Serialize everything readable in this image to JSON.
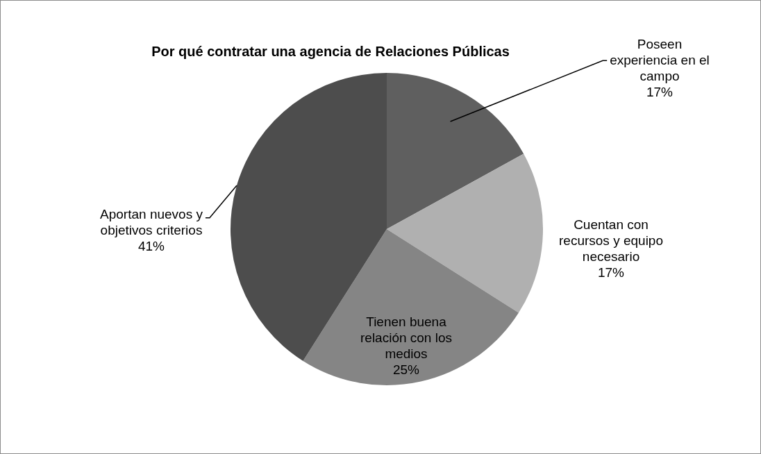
{
  "chart_data": {
    "type": "pie",
    "title": "Por qué contratar una agencia de Relaciones Públicas",
    "categories": [
      "Poseen experiencia en el campo",
      "Cuentan con recursos y equipo necesario",
      "Tienen buena relación con los medios",
      "Aportan nuevos y objetivos criterios"
    ],
    "values": [
      17,
      17,
      25,
      41
    ],
    "value_labels": [
      "17%",
      "17%",
      "25%",
      "41%"
    ],
    "colors": [
      "#5f5f5f",
      "#b0b0b0",
      "#858585",
      "#4d4d4d"
    ],
    "data_labels": true,
    "legend": false
  }
}
